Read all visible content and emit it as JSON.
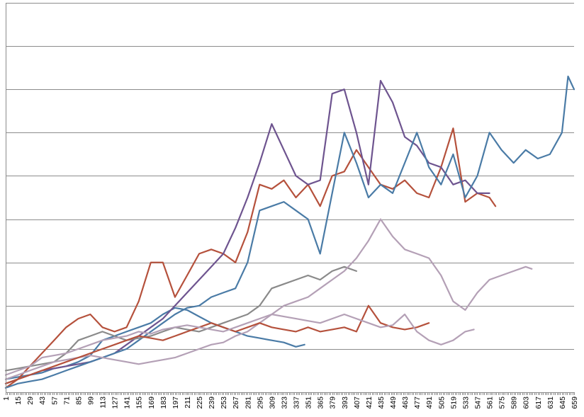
{
  "chart_data": {
    "type": "line",
    "title": "",
    "xlabel": "",
    "ylabel": "",
    "x_tick_labels": [
      "1",
      "15",
      "29",
      "43",
      "57",
      "71",
      "85",
      "99",
      "113",
      "127",
      "141",
      "155",
      "169",
      "183",
      "197",
      "211",
      "225",
      "239",
      "253",
      "267",
      "281",
      "295",
      "309",
      "323",
      "337",
      "351",
      "365",
      "379",
      "393",
      "407",
      "421",
      "435",
      "449",
      "463",
      "477",
      "491",
      "505",
      "519",
      "533",
      "547",
      "561",
      "575",
      "589",
      "603",
      "617",
      "631",
      "645",
      "659"
    ],
    "xlim": [
      1,
      659
    ],
    "ylim": [
      0,
      9
    ],
    "y_gridlines": [
      1,
      2,
      3,
      4,
      5,
      6,
      7,
      8,
      9
    ],
    "y_tick_labels_shown": false,
    "legend": "none",
    "series": [
      {
        "color": "#4a7ba6",
        "points": [
          [
            1,
            0.3
          ],
          [
            15,
            0.35
          ],
          [
            29,
            0.4
          ],
          [
            43,
            0.45
          ],
          [
            57,
            0.55
          ],
          [
            71,
            0.6
          ],
          [
            85,
            0.7
          ],
          [
            99,
            0.85
          ],
          [
            113,
            1.2
          ],
          [
            127,
            1.3
          ],
          [
            141,
            1.4
          ],
          [
            155,
            1.5
          ],
          [
            169,
            1.6
          ],
          [
            183,
            1.8
          ],
          [
            197,
            1.95
          ],
          [
            211,
            1.9
          ],
          [
            225,
            1.75
          ],
          [
            239,
            1.6
          ],
          [
            253,
            1.5
          ],
          [
            267,
            1.4
          ],
          [
            281,
            1.3
          ],
          [
            295,
            1.25
          ],
          [
            309,
            1.2
          ],
          [
            323,
            1.15
          ],
          [
            337,
            1.05
          ],
          [
            347,
            1.1
          ]
        ]
      },
      {
        "color": "#b5513c",
        "points": [
          [
            1,
            0.1
          ],
          [
            15,
            0.3
          ],
          [
            29,
            0.6
          ],
          [
            43,
            0.9
          ],
          [
            57,
            1.2
          ],
          [
            71,
            1.5
          ],
          [
            85,
            1.7
          ],
          [
            99,
            1.8
          ],
          [
            113,
            1.5
          ],
          [
            127,
            1.4
          ],
          [
            141,
            1.5
          ],
          [
            155,
            2.1
          ],
          [
            169,
            3.0
          ],
          [
            183,
            3.0
          ],
          [
            197,
            2.2
          ],
          [
            211,
            2.7
          ],
          [
            225,
            3.2
          ],
          [
            239,
            3.3
          ],
          [
            253,
            3.2
          ],
          [
            267,
            3.0
          ],
          [
            281,
            3.7
          ],
          [
            295,
            4.8
          ],
          [
            309,
            4.7
          ],
          [
            323,
            4.9
          ],
          [
            337,
            4.5
          ],
          [
            351,
            4.8
          ],
          [
            365,
            4.3
          ],
          [
            379,
            5.0
          ],
          [
            393,
            5.1
          ],
          [
            407,
            5.6
          ],
          [
            421,
            5.2
          ],
          [
            435,
            4.8
          ],
          [
            449,
            4.7
          ],
          [
            463,
            4.9
          ],
          [
            477,
            4.6
          ],
          [
            491,
            4.5
          ],
          [
            505,
            5.2
          ],
          [
            519,
            6.1
          ],
          [
            533,
            4.4
          ],
          [
            547,
            4.6
          ],
          [
            561,
            4.5
          ],
          [
            568,
            4.3
          ]
        ]
      },
      {
        "color": "#6e548f",
        "points": [
          [
            1,
            0.2
          ],
          [
            15,
            0.3
          ],
          [
            29,
            0.4
          ],
          [
            43,
            0.5
          ],
          [
            57,
            0.55
          ],
          [
            71,
            0.6
          ],
          [
            85,
            0.65
          ],
          [
            99,
            0.7
          ],
          [
            113,
            0.8
          ],
          [
            127,
            0.9
          ],
          [
            141,
            1.1
          ],
          [
            155,
            1.3
          ],
          [
            169,
            1.5
          ],
          [
            183,
            1.7
          ],
          [
            197,
            2.0
          ],
          [
            211,
            2.3
          ],
          [
            225,
            2.6
          ],
          [
            239,
            2.9
          ],
          [
            253,
            3.2
          ],
          [
            267,
            3.8
          ],
          [
            281,
            4.5
          ],
          [
            295,
            5.3
          ],
          [
            309,
            6.2
          ],
          [
            323,
            5.6
          ],
          [
            337,
            5.0
          ],
          [
            351,
            4.8
          ],
          [
            365,
            4.9
          ],
          [
            379,
            6.9
          ],
          [
            393,
            7.0
          ],
          [
            407,
            6.0
          ],
          [
            421,
            4.8
          ],
          [
            435,
            7.2
          ],
          [
            449,
            6.7
          ],
          [
            463,
            5.9
          ],
          [
            477,
            5.7
          ],
          [
            491,
            5.3
          ],
          [
            505,
            5.2
          ],
          [
            519,
            4.8
          ],
          [
            533,
            4.9
          ],
          [
            547,
            4.6
          ],
          [
            561,
            4.6
          ]
        ]
      },
      {
        "color": "#4a7ba6",
        "points": [
          [
            1,
            0.1
          ],
          [
            15,
            0.2
          ],
          [
            29,
            0.25
          ],
          [
            43,
            0.3
          ],
          [
            57,
            0.4
          ],
          [
            71,
            0.5
          ],
          [
            85,
            0.6
          ],
          [
            99,
            0.7
          ],
          [
            113,
            0.8
          ],
          [
            127,
            0.9
          ],
          [
            141,
            1.0
          ],
          [
            155,
            1.2
          ],
          [
            169,
            1.4
          ],
          [
            183,
            1.6
          ],
          [
            197,
            1.8
          ],
          [
            211,
            1.95
          ],
          [
            225,
            2.0
          ],
          [
            239,
            2.2
          ],
          [
            253,
            2.3
          ],
          [
            267,
            2.4
          ],
          [
            281,
            3.0
          ],
          [
            295,
            4.2
          ],
          [
            309,
            4.3
          ],
          [
            323,
            4.4
          ],
          [
            337,
            4.2
          ],
          [
            351,
            4.0
          ],
          [
            365,
            3.2
          ],
          [
            379,
            4.6
          ],
          [
            393,
            6.0
          ],
          [
            407,
            5.3
          ],
          [
            421,
            4.5
          ],
          [
            435,
            4.8
          ],
          [
            449,
            4.6
          ],
          [
            463,
            5.3
          ],
          [
            477,
            6.0
          ],
          [
            491,
            5.2
          ],
          [
            505,
            4.8
          ],
          [
            519,
            5.5
          ],
          [
            533,
            4.5
          ],
          [
            547,
            5.0
          ],
          [
            561,
            6.0
          ],
          [
            575,
            5.6
          ],
          [
            589,
            5.3
          ],
          [
            603,
            5.6
          ],
          [
            617,
            5.4
          ],
          [
            631,
            5.5
          ],
          [
            645,
            6.0
          ],
          [
            652,
            7.3
          ],
          [
            659,
            7.0
          ]
        ]
      },
      {
        "color": "#8a8a8a",
        "points": [
          [
            1,
            0.5
          ],
          [
            15,
            0.55
          ],
          [
            29,
            0.6
          ],
          [
            43,
            0.65
          ],
          [
            57,
            0.7
          ],
          [
            71,
            0.9
          ],
          [
            85,
            1.2
          ],
          [
            99,
            1.3
          ],
          [
            113,
            1.4
          ],
          [
            127,
            1.3
          ],
          [
            141,
            1.2
          ],
          [
            155,
            1.25
          ],
          [
            169,
            1.3
          ],
          [
            183,
            1.4
          ],
          [
            197,
            1.5
          ],
          [
            211,
            1.45
          ],
          [
            225,
            1.4
          ],
          [
            239,
            1.5
          ],
          [
            253,
            1.6
          ],
          [
            267,
            1.7
          ],
          [
            281,
            1.8
          ],
          [
            295,
            2.0
          ],
          [
            309,
            2.4
          ],
          [
            323,
            2.5
          ],
          [
            337,
            2.6
          ],
          [
            351,
            2.7
          ],
          [
            365,
            2.6
          ],
          [
            379,
            2.8
          ],
          [
            393,
            2.9
          ],
          [
            407,
            2.8
          ]
        ]
      },
      {
        "color": "#b4a0b6",
        "points": [
          [
            1,
            0.3
          ],
          [
            15,
            0.4
          ],
          [
            29,
            0.5
          ],
          [
            43,
            0.6
          ],
          [
            57,
            0.7
          ],
          [
            71,
            0.75
          ],
          [
            85,
            0.8
          ],
          [
            99,
            0.85
          ],
          [
            113,
            0.8
          ],
          [
            127,
            0.75
          ],
          [
            141,
            0.7
          ],
          [
            155,
            0.65
          ],
          [
            169,
            0.7
          ],
          [
            183,
            0.75
          ],
          [
            197,
            0.8
          ],
          [
            211,
            0.9
          ],
          [
            225,
            1.0
          ],
          [
            239,
            1.1
          ],
          [
            253,
            1.15
          ],
          [
            267,
            1.3
          ],
          [
            281,
            1.4
          ],
          [
            295,
            1.6
          ],
          [
            309,
            1.8
          ],
          [
            323,
            2.0
          ],
          [
            337,
            2.1
          ],
          [
            351,
            2.2
          ],
          [
            365,
            2.4
          ],
          [
            379,
            2.6
          ],
          [
            393,
            2.8
          ],
          [
            407,
            3.1
          ],
          [
            421,
            3.5
          ],
          [
            435,
            4.0
          ],
          [
            449,
            3.6
          ],
          [
            463,
            3.3
          ],
          [
            477,
            3.2
          ],
          [
            491,
            3.1
          ],
          [
            505,
            2.7
          ],
          [
            519,
            2.1
          ],
          [
            533,
            1.9
          ],
          [
            547,
            2.3
          ],
          [
            561,
            2.6
          ],
          [
            575,
            2.7
          ],
          [
            589,
            2.8
          ],
          [
            603,
            2.9
          ],
          [
            610,
            2.85
          ]
        ]
      },
      {
        "color": "#b5513c",
        "points": [
          [
            1,
            0.2
          ],
          [
            15,
            0.3
          ],
          [
            29,
            0.4
          ],
          [
            43,
            0.5
          ],
          [
            57,
            0.6
          ],
          [
            71,
            0.7
          ],
          [
            85,
            0.8
          ],
          [
            99,
            0.9
          ],
          [
            113,
            1.0
          ],
          [
            127,
            1.1
          ],
          [
            141,
            1.2
          ],
          [
            155,
            1.3
          ],
          [
            169,
            1.25
          ],
          [
            183,
            1.2
          ],
          [
            197,
            1.3
          ],
          [
            211,
            1.4
          ],
          [
            225,
            1.5
          ],
          [
            239,
            1.6
          ],
          [
            253,
            1.5
          ],
          [
            267,
            1.4
          ],
          [
            281,
            1.5
          ],
          [
            295,
            1.6
          ],
          [
            309,
            1.5
          ],
          [
            323,
            1.45
          ],
          [
            337,
            1.4
          ],
          [
            351,
            1.5
          ],
          [
            365,
            1.4
          ],
          [
            379,
            1.45
          ],
          [
            393,
            1.5
          ],
          [
            407,
            1.4
          ],
          [
            421,
            2.0
          ],
          [
            435,
            1.6
          ],
          [
            449,
            1.5
          ],
          [
            463,
            1.45
          ],
          [
            477,
            1.5
          ],
          [
            491,
            1.6
          ]
        ]
      },
      {
        "color": "#b4a0b6",
        "points": [
          [
            1,
            0.4
          ],
          [
            15,
            0.5
          ],
          [
            29,
            0.6
          ],
          [
            43,
            0.8
          ],
          [
            57,
            0.85
          ],
          [
            71,
            0.9
          ],
          [
            85,
            1.0
          ],
          [
            99,
            1.1
          ],
          [
            113,
            1.2
          ],
          [
            127,
            1.25
          ],
          [
            141,
            1.3
          ],
          [
            155,
            1.4
          ],
          [
            169,
            1.35
          ],
          [
            183,
            1.45
          ],
          [
            197,
            1.5
          ],
          [
            211,
            1.55
          ],
          [
            225,
            1.5
          ],
          [
            239,
            1.45
          ],
          [
            253,
            1.4
          ],
          [
            267,
            1.5
          ],
          [
            281,
            1.6
          ],
          [
            295,
            1.7
          ],
          [
            309,
            1.8
          ],
          [
            323,
            1.75
          ],
          [
            337,
            1.7
          ],
          [
            351,
            1.65
          ],
          [
            365,
            1.6
          ],
          [
            379,
            1.7
          ],
          [
            393,
            1.8
          ],
          [
            407,
            1.7
          ],
          [
            421,
            1.6
          ],
          [
            435,
            1.5
          ],
          [
            449,
            1.55
          ],
          [
            463,
            1.8
          ],
          [
            477,
            1.4
          ],
          [
            491,
            1.2
          ],
          [
            505,
            1.1
          ],
          [
            519,
            1.2
          ],
          [
            533,
            1.4
          ],
          [
            543,
            1.45
          ]
        ]
      }
    ]
  }
}
